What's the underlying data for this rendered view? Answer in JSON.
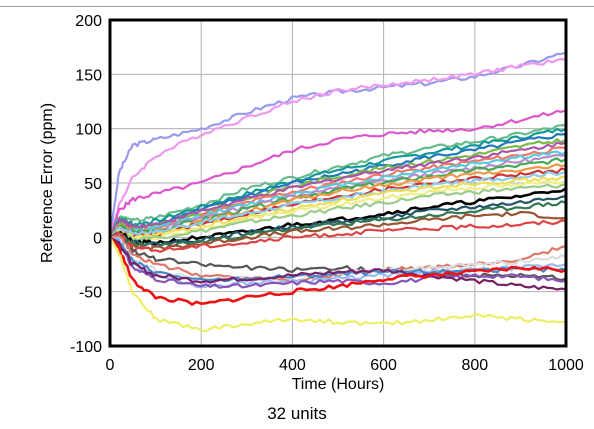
{
  "caption": "32 units",
  "chart_data": {
    "type": "line",
    "title": "",
    "xlabel": "Time (Hours)",
    "ylabel": "Reference Error (ppm)",
    "xlim": [
      0,
      1000
    ],
    "ylim": [
      -100,
      200
    ],
    "xticks": [
      0,
      200,
      400,
      600,
      800,
      1000
    ],
    "yticks": [
      -100,
      -50,
      0,
      50,
      100,
      150,
      200
    ],
    "grid": true,
    "legend": "none",
    "x": [
      0,
      20,
      50,
      100,
      200,
      300,
      400,
      500,
      600,
      700,
      800,
      900,
      1000
    ],
    "series": [
      {
        "color": "#9999ee",
        "values": [
          0,
          60,
          85,
          90,
          100,
          115,
          128,
          134,
          138,
          142,
          148,
          158,
          170
        ]
      },
      {
        "color": "#ee99ee",
        "values": [
          0,
          30,
          55,
          75,
          95,
          110,
          125,
          135,
          140,
          145,
          150,
          158,
          163
        ]
      },
      {
        "color": "#dd55cc",
        "values": [
          0,
          25,
          35,
          40,
          50,
          65,
          80,
          90,
          95,
          98,
          100,
          108,
          117
        ]
      },
      {
        "color": "#66bb88",
        "values": [
          0,
          20,
          15,
          18,
          30,
          45,
          55,
          65,
          75,
          82,
          88,
          95,
          103
        ]
      },
      {
        "color": "#119999",
        "values": [
          0,
          18,
          12,
          15,
          28,
          40,
          52,
          62,
          70,
          78,
          85,
          92,
          100
        ]
      },
      {
        "color": "#2277bb",
        "values": [
          0,
          15,
          10,
          12,
          25,
          38,
          50,
          58,
          66,
          74,
          80,
          88,
          95
        ]
      },
      {
        "color": "#77bb44",
        "values": [
          0,
          14,
          8,
          10,
          22,
          36,
          47,
          56,
          64,
          70,
          76,
          84,
          90
        ]
      },
      {
        "color": "#aa55aa",
        "values": [
          0,
          16,
          10,
          12,
          24,
          35,
          45,
          54,
          62,
          68,
          74,
          80,
          87
        ]
      },
      {
        "color": "#ee7766",
        "values": [
          0,
          12,
          6,
          8,
          20,
          32,
          42,
          50,
          58,
          64,
          70,
          76,
          82
        ]
      },
      {
        "color": "#55ccdd",
        "values": [
          0,
          10,
          5,
          8,
          20,
          30,
          40,
          48,
          55,
          62,
          68,
          74,
          78
        ]
      },
      {
        "color": "#bb88cc",
        "values": [
          0,
          8,
          4,
          6,
          18,
          28,
          38,
          45,
          52,
          58,
          64,
          70,
          75
        ]
      },
      {
        "color": "#44aa55",
        "values": [
          0,
          10,
          5,
          6,
          16,
          26,
          36,
          44,
          50,
          56,
          62,
          66,
          72
        ]
      },
      {
        "color": "#ee9944",
        "values": [
          0,
          8,
          2,
          4,
          14,
          24,
          34,
          42,
          48,
          54,
          58,
          62,
          66
        ]
      },
      {
        "color": "#cc3333",
        "values": [
          0,
          6,
          2,
          3,
          12,
          22,
          30,
          38,
          44,
          50,
          54,
          58,
          62
        ]
      },
      {
        "color": "#88ccee",
        "values": [
          0,
          8,
          4,
          5,
          14,
          22,
          30,
          36,
          42,
          48,
          52,
          56,
          60
        ]
      },
      {
        "color": "#eedd55",
        "values": [
          0,
          5,
          0,
          2,
          10,
          18,
          26,
          34,
          40,
          46,
          50,
          52,
          55
        ]
      },
      {
        "color": "#eeee88",
        "values": [
          0,
          4,
          -2,
          0,
          8,
          16,
          24,
          30,
          36,
          42,
          46,
          48,
          52
        ]
      },
      {
        "color": "#99cc88",
        "values": [
          0,
          4,
          -2,
          0,
          6,
          14,
          20,
          26,
          32,
          38,
          42,
          45,
          48
        ]
      },
      {
        "color": "#000000",
        "values": [
          0,
          5,
          -5,
          -5,
          0,
          5,
          12,
          16,
          22,
          28,
          33,
          38,
          45
        ]
      },
      {
        "color": "#225566",
        "values": [
          0,
          3,
          -5,
          -6,
          -2,
          4,
          10,
          14,
          18,
          24,
          28,
          32,
          38
        ]
      },
      {
        "color": "#337755",
        "values": [
          0,
          3,
          -6,
          -8,
          -4,
          2,
          8,
          12,
          16,
          20,
          24,
          28,
          32
        ]
      },
      {
        "color": "#995533",
        "values": [
          0,
          2,
          -8,
          -10,
          -6,
          0,
          5,
          8,
          12,
          16,
          20,
          22,
          18
        ]
      },
      {
        "color": "#dd4444",
        "values": [
          0,
          5,
          -10,
          -12,
          -8,
          -5,
          0,
          3,
          6,
          8,
          10,
          12,
          15
        ]
      },
      {
        "color": "#555555",
        "values": [
          0,
          3,
          -12,
          -20,
          -25,
          -28,
          -30,
          -28,
          -30,
          -32,
          -35,
          -35,
          -38
        ]
      },
      {
        "color": "#dd7766",
        "values": [
          0,
          2,
          -15,
          -25,
          -35,
          -38,
          -40,
          -35,
          -30,
          -28,
          -25,
          -20,
          -8
        ]
      },
      {
        "color": "#dddddd",
        "values": [
          0,
          -2,
          -20,
          -30,
          -40,
          -38,
          -36,
          -32,
          -30,
          -28,
          -25,
          -22,
          -18
        ]
      },
      {
        "color": "#99bbee",
        "values": [
          0,
          -3,
          -25,
          -35,
          -45,
          -42,
          -40,
          -38,
          -35,
          -32,
          -30,
          -28,
          -25
        ]
      },
      {
        "color": "#4488cc",
        "values": [
          0,
          -5,
          -22,
          -32,
          -40,
          -38,
          -36,
          -34,
          -32,
          -32,
          -30,
          -30,
          -30
        ]
      },
      {
        "color": "#8855bb",
        "values": [
          0,
          -6,
          -28,
          -38,
          -45,
          -45,
          -42,
          -40,
          -42,
          -38,
          -35,
          -36,
          -40
        ]
      },
      {
        "color": "#772266",
        "values": [
          0,
          -5,
          -25,
          -35,
          -40,
          -38,
          -35,
          -32,
          -30,
          -35,
          -40,
          -45,
          -48
        ]
      },
      {
        "color": "#ee1111",
        "values": [
          0,
          -10,
          -40,
          -55,
          -62,
          -55,
          -50,
          -45,
          -38,
          -35,
          -32,
          -28,
          -30
        ]
      },
      {
        "color": "#eeee66",
        "values": [
          0,
          -15,
          -50,
          -75,
          -85,
          -80,
          -75,
          -78,
          -80,
          -76,
          -72,
          -75,
          -78
        ]
      }
    ]
  }
}
